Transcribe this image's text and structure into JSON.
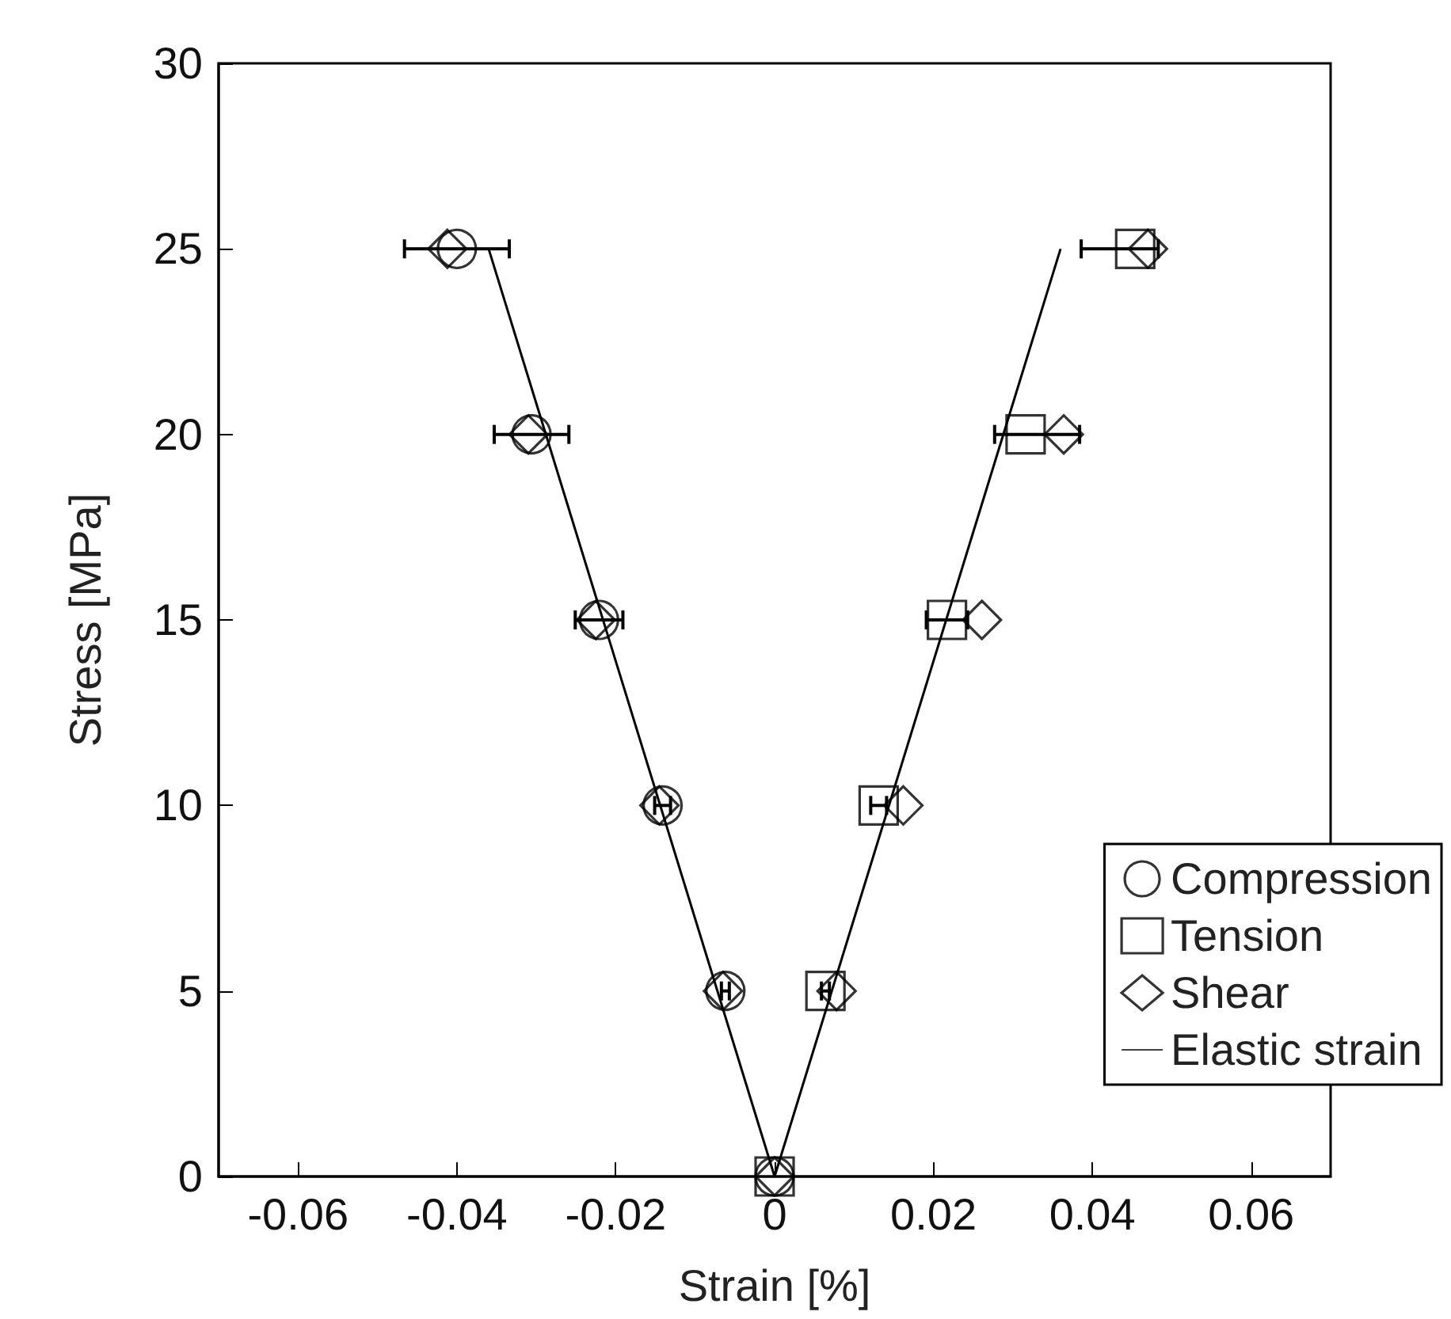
{
  "chart_data": {
    "type": "scatter",
    "xlabel": "Strain [%]",
    "ylabel": "Stress [MPa]",
    "xlim": [
      -0.07,
      0.07
    ],
    "xticks": [
      -0.06,
      -0.04,
      -0.02,
      0,
      0.02,
      0.04,
      0.06
    ],
    "ylim": [
      0,
      30
    ],
    "yticks": [
      0,
      5,
      10,
      15,
      20,
      25,
      30
    ],
    "grid": false,
    "legend": "bottom right",
    "series": [
      {
        "name": "Compression",
        "marker": "circle",
        "color": "#000000",
        "x": [
          0,
          -0.0062,
          -0.0141,
          -0.0221,
          -0.0306,
          -0.04
        ],
        "values": [
          0,
          5,
          10,
          15,
          20,
          25
        ],
        "xerrors": [
          null,
          0.0005,
          0.001,
          0.003,
          0.0047,
          0.0066
        ]
      },
      {
        "name": "Tension",
        "marker": "square",
        "color": "#000000",
        "x": [
          0,
          0.0064,
          0.0131,
          0.0217,
          0.0316,
          0.0454
        ],
        "values": [
          0,
          5,
          10,
          15,
          20,
          25
        ],
        "xerrors": [
          null,
          0.0005,
          0.001,
          [
            0.0191,
            0.0243
          ],
          [
            0.0277,
            0.0384
          ],
          [
            0.0386,
            0.0483
          ]
        ]
      },
      {
        "name": "Shear",
        "marker": "diamond",
        "color": "#000000",
        "x": [
          0,
          0.0078,
          0.0162,
          0.0261,
          0.0364,
          0.047,
          -0.0065,
          -0.0145,
          -0.0225,
          -0.031,
          -0.0412
        ],
        "values": [
          0,
          5,
          10,
          15,
          20,
          25,
          5,
          10,
          15,
          20,
          25
        ]
      },
      {
        "name": "Elastic strain",
        "type": "line",
        "marker": "none",
        "line_style": "solid",
        "color": "#000000",
        "x": [
          -0.036,
          0,
          0.036
        ],
        "values": [
          25,
          0,
          25
        ]
      }
    ]
  }
}
